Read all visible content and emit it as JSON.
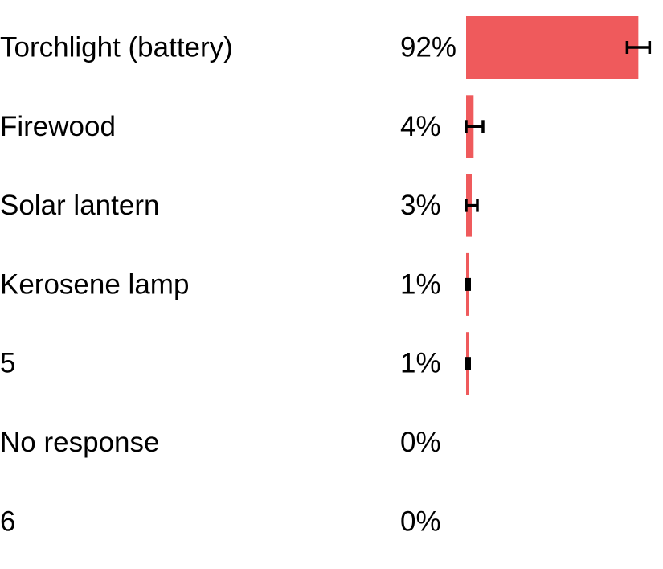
{
  "chart_data": {
    "type": "bar",
    "orientation": "horizontal",
    "categories": [
      "Torchlight (battery)",
      "Firewood",
      "Solar lantern",
      "Kerosene lamp",
      "5",
      "No response",
      "6"
    ],
    "value_labels": [
      "92%",
      "4%",
      "3%",
      "1%",
      "1%",
      "0%",
      "0%"
    ],
    "values": [
      92,
      4,
      3,
      1,
      1,
      0,
      0
    ],
    "error_low": [
      86,
      0,
      0,
      0,
      0,
      null,
      null
    ],
    "error_high": [
      98,
      9,
      6,
      2,
      2,
      null,
      null
    ],
    "xlim": [
      0,
      100
    ],
    "title": "",
    "xlabel": "",
    "ylabel": "",
    "grid": false,
    "bar_color": "#ef5a5c",
    "error_bar_color": "#000000"
  }
}
